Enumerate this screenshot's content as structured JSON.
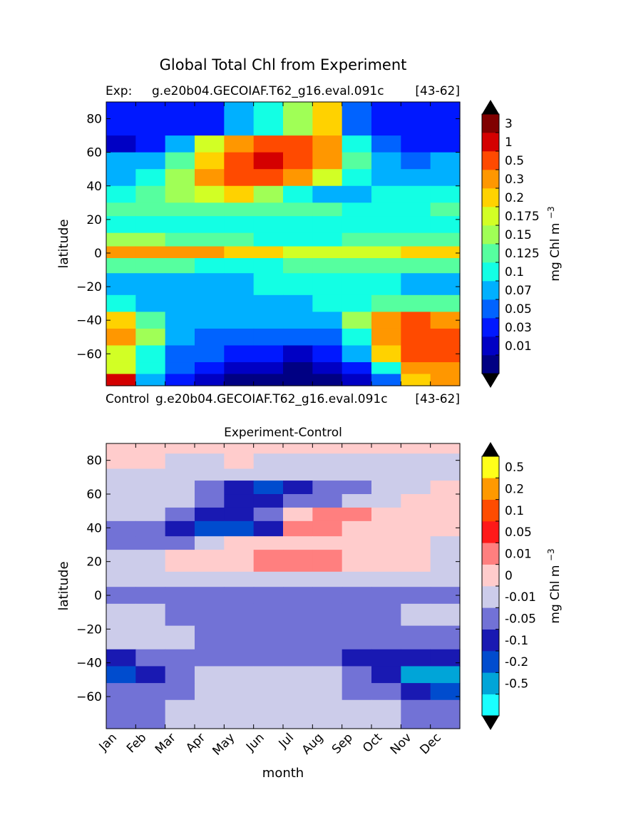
{
  "figure": {
    "title": "Global Total Chl from Experiment",
    "exp_label": "Exp:",
    "exp_case": "g.e20b04.GECOIAF.T62_g16.eval.091c",
    "exp_years": "[43-62]",
    "control_label": "Control",
    "control_case": "g.e20b04.GECOIAF.T62_g16.eval.091c",
    "control_years": "[43-62]"
  },
  "chart_data": [
    {
      "type": "heatmap",
      "title": "",
      "xlabel": "",
      "ylabel": "latitude",
      "ylim": [
        -79,
        90
      ],
      "yticks": [
        "80",
        "60",
        "40",
        "20",
        "0",
        "−20",
        "−40",
        "−60"
      ],
      "ytick_values": [
        80,
        60,
        40,
        20,
        0,
        -20,
        -40,
        -60
      ],
      "colorbar": {
        "label": "mg Chl m",
        "label_exp": "−3",
        "extend": "both",
        "extend_colors": [
          "#000000",
          "#000000"
        ],
        "levels": [
          "3",
          "1",
          "0.5",
          "0.3",
          "0.2",
          "0.175",
          "0.15",
          "0.125",
          "0.1",
          "0.07",
          "0.05",
          "0.03",
          "0.01"
        ],
        "colors": [
          "#800000",
          "#d40000",
          "#ff4a00",
          "#ff9700",
          "#ffd200",
          "#d2ff25",
          "#a0ff56",
          "#56ff9f",
          "#13ffe4",
          "#00b0ff",
          "#0063ff",
          "#0018ff",
          "#0000c4",
          "#000083"
        ]
      },
      "months": [
        "Jan",
        "Feb",
        "Mar",
        "Apr",
        "May",
        "Jun",
        "Jul",
        "Aug",
        "Sep",
        "Oct",
        "Nov",
        "Dec"
      ],
      "lat_bands": [
        {
          "lat": [
            70,
            90
          ],
          "values": [
            11,
            11,
            11,
            11,
            9,
            8,
            6,
            4,
            10,
            11,
            11,
            11
          ]
        },
        {
          "lat": [
            60,
            70
          ],
          "values": [
            12,
            11,
            9,
            5,
            3,
            2,
            2,
            3,
            8,
            10,
            11,
            11
          ]
        },
        {
          "lat": [
            50,
            60
          ],
          "values": [
            9,
            9,
            7,
            4,
            2,
            1,
            2,
            3,
            7,
            9,
            10,
            9
          ]
        },
        {
          "lat": [
            40,
            50
          ],
          "values": [
            9,
            8,
            6,
            3,
            2,
            2,
            3,
            5,
            8,
            9,
            9,
            9
          ]
        },
        {
          "lat": [
            30,
            40
          ],
          "values": [
            8,
            7,
            6,
            5,
            4,
            6,
            8,
            9,
            9,
            8,
            8,
            8
          ]
        },
        {
          "lat": [
            22,
            30
          ],
          "values": [
            7,
            7,
            7,
            7,
            7,
            7,
            7,
            7,
            8,
            8,
            8,
            7
          ]
        },
        {
          "lat": [
            12,
            22
          ],
          "values": [
            8,
            8,
            8,
            8,
            8,
            8,
            8,
            8,
            8,
            8,
            8,
            8
          ]
        },
        {
          "lat": [
            4,
            12
          ],
          "values": [
            6,
            6,
            7,
            7,
            7,
            8,
            8,
            8,
            7,
            7,
            7,
            7
          ]
        },
        {
          "lat": [
            -3,
            4
          ],
          "values": [
            3,
            3,
            3,
            3,
            4,
            4,
            5,
            5,
            5,
            5,
            4,
            4
          ]
        },
        {
          "lat": [
            -12,
            -3
          ],
          "values": [
            7,
            7,
            7,
            8,
            8,
            8,
            7,
            7,
            7,
            7,
            7,
            7
          ]
        },
        {
          "lat": [
            -25,
            -12
          ],
          "values": [
            9,
            9,
            9,
            9,
            9,
            8,
            8,
            8,
            8,
            8,
            9,
            9
          ]
        },
        {
          "lat": [
            -35,
            -25
          ],
          "values": [
            8,
            9,
            9,
            9,
            9,
            9,
            9,
            8,
            8,
            7,
            7,
            7
          ]
        },
        {
          "lat": [
            -45,
            -35
          ],
          "values": [
            4,
            7,
            9,
            9,
            9,
            9,
            9,
            9,
            6,
            3,
            2,
            3
          ]
        },
        {
          "lat": [
            -55,
            -45
          ],
          "values": [
            3,
            6,
            9,
            10,
            10,
            10,
            10,
            10,
            8,
            3,
            2,
            2
          ]
        },
        {
          "lat": [
            -65,
            -55
          ],
          "values": [
            5,
            8,
            10,
            10,
            11,
            11,
            12,
            11,
            9,
            4,
            2,
            2
          ]
        },
        {
          "lat": [
            -72,
            -65
          ],
          "values": [
            5,
            8,
            10,
            11,
            12,
            12,
            13,
            12,
            11,
            8,
            3,
            3
          ]
        },
        {
          "lat": [
            -79,
            -72
          ],
          "values": [
            1,
            9,
            11,
            12,
            13,
            13,
            13,
            13,
            12,
            10,
            4,
            3
          ]
        }
      ]
    },
    {
      "type": "heatmap",
      "title": "Experiment-Control",
      "xlabel": "month",
      "ylabel": "latitude",
      "ylim": [
        -79,
        90
      ],
      "yticks": [
        "80",
        "60",
        "40",
        "20",
        "0",
        "−20",
        "−40",
        "−60"
      ],
      "ytick_values": [
        80,
        60,
        40,
        20,
        0,
        -20,
        -40,
        -60
      ],
      "xticks": [
        "Jan",
        "Feb",
        "Mar",
        "Apr",
        "May",
        "Jun",
        "Jul",
        "Aug",
        "Sep",
        "Oct",
        "Nov",
        "Dec"
      ],
      "colorbar": {
        "label": "mg Chl m",
        "label_exp": "−3",
        "extend": "both",
        "extend_colors": [
          "#000000",
          "#000000"
        ],
        "levels": [
          "0.5",
          "0.2",
          "0.1",
          "0.05",
          "0.01",
          "0",
          "-0.01",
          "-0.05",
          "-0.1",
          "-0.2",
          "-0.5"
        ],
        "colors": [
          "#ffff19",
          "#ff9900",
          "#ff4c00",
          "#ff1919",
          "#ff7f7f",
          "#ffcccc",
          "#ccccea",
          "#7272d6",
          "#1919b2",
          "#004cce",
          "#00a5d8",
          "#19ffff"
        ]
      },
      "months": [
        "Jan",
        "Feb",
        "Mar",
        "Apr",
        "May",
        "Jun",
        "Jul",
        "Aug",
        "Sep",
        "Oct",
        "Nov",
        "Dec"
      ],
      "lat_bands": [
        {
          "lat": [
            84,
            90
          ],
          "values": [
            5,
            5,
            5,
            5,
            5,
            5,
            5,
            5,
            5,
            5,
            5,
            5
          ]
        },
        {
          "lat": [
            75,
            84
          ],
          "values": [
            5,
            5,
            6,
            6,
            5,
            6,
            6,
            6,
            6,
            6,
            6,
            6
          ]
        },
        {
          "lat": [
            68,
            75
          ],
          "values": [
            6,
            6,
            6,
            6,
            6,
            6,
            6,
            6,
            6,
            6,
            6,
            6
          ]
        },
        {
          "lat": [
            60,
            68
          ],
          "values": [
            6,
            6,
            6,
            7,
            8,
            9,
            8,
            7,
            7,
            6,
            6,
            5
          ]
        },
        {
          "lat": [
            52,
            60
          ],
          "values": [
            6,
            6,
            6,
            7,
            8,
            8,
            7,
            7,
            6,
            6,
            5,
            5
          ]
        },
        {
          "lat": [
            44,
            52
          ],
          "values": [
            6,
            6,
            7,
            8,
            8,
            7,
            5,
            4,
            4,
            5,
            5,
            5
          ]
        },
        {
          "lat": [
            35,
            44
          ],
          "values": [
            7,
            7,
            8,
            9,
            9,
            8,
            4,
            4,
            5,
            5,
            5,
            5
          ]
        },
        {
          "lat": [
            27,
            35
          ],
          "values": [
            7,
            7,
            7,
            6,
            5,
            5,
            5,
            5,
            5,
            5,
            5,
            6
          ]
        },
        {
          "lat": [
            14,
            27
          ],
          "values": [
            6,
            6,
            5,
            5,
            5,
            4,
            4,
            4,
            5,
            5,
            5,
            6
          ]
        },
        {
          "lat": [
            5,
            14
          ],
          "values": [
            6,
            6,
            6,
            6,
            6,
            6,
            6,
            6,
            6,
            6,
            6,
            6
          ]
        },
        {
          "lat": [
            -5,
            5
          ],
          "values": [
            7,
            7,
            7,
            7,
            7,
            7,
            7,
            7,
            7,
            7,
            7,
            7
          ]
        },
        {
          "lat": [
            -18,
            -5
          ],
          "values": [
            6,
            6,
            7,
            7,
            7,
            7,
            7,
            7,
            7,
            7,
            6,
            6
          ]
        },
        {
          "lat": [
            -32,
            -18
          ],
          "values": [
            6,
            6,
            6,
            7,
            7,
            7,
            7,
            7,
            7,
            7,
            7,
            7
          ]
        },
        {
          "lat": [
            -42,
            -32
          ],
          "values": [
            8,
            7,
            7,
            7,
            7,
            7,
            7,
            7,
            8,
            8,
            8,
            8
          ]
        },
        {
          "lat": [
            -52,
            -42
          ],
          "values": [
            9,
            8,
            7,
            6,
            6,
            6,
            6,
            6,
            7,
            8,
            10,
            10
          ]
        },
        {
          "lat": [
            -62,
            -52
          ],
          "values": [
            7,
            7,
            7,
            6,
            6,
            6,
            6,
            6,
            7,
            7,
            8,
            9
          ]
        },
        {
          "lat": [
            -79,
            -62
          ],
          "values": [
            7,
            7,
            6,
            6,
            6,
            6,
            6,
            6,
            6,
            6,
            7,
            7
          ]
        }
      ]
    }
  ]
}
